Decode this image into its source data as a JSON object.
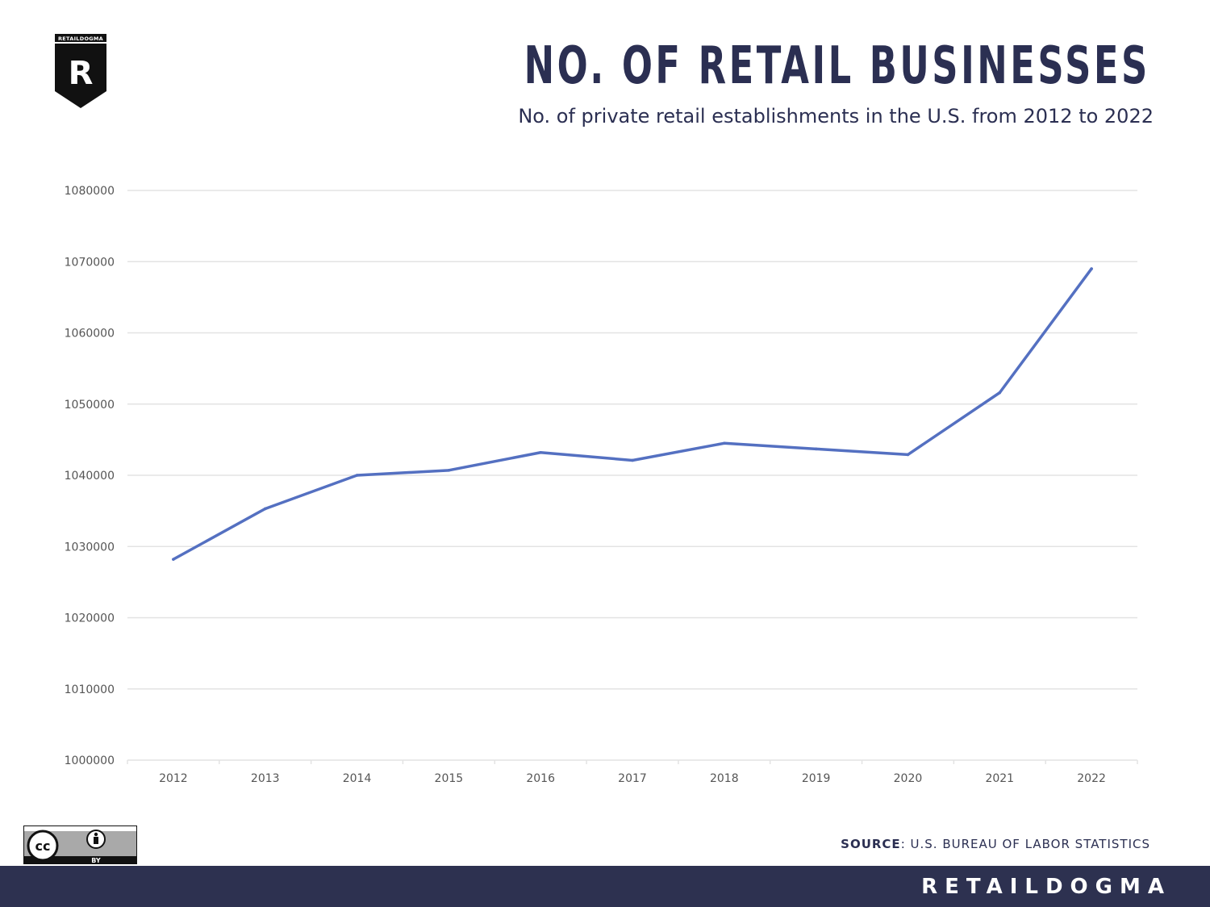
{
  "logo": {
    "brand": "RETAILDOGMA",
    "letter": "R"
  },
  "header": {
    "title": "NO. OF RETAIL BUSINESSES",
    "subtitle": "No. of private retail establishments in the U.S. from 2012 to 2022"
  },
  "chart_data": {
    "type": "line",
    "title": "NO. OF RETAIL BUSINESSES",
    "subtitle": "No. of private retail establishments in the U.S. from 2012 to 2022",
    "xlabel": "",
    "ylabel": "",
    "categories": [
      "2012",
      "2013",
      "2014",
      "2015",
      "2016",
      "2017",
      "2018",
      "2019",
      "2020",
      "2021",
      "2022"
    ],
    "series": [
      {
        "name": "Retail establishments",
        "values": [
          1028200,
          1035300,
          1040000,
          1040700,
          1043200,
          1042100,
          1044500,
          1043700,
          1042900,
          1051600,
          1069000
        ]
      }
    ],
    "ylim": [
      1000000,
      1080000
    ],
    "yticks": [
      1000000,
      1010000,
      1020000,
      1030000,
      1040000,
      1050000,
      1060000,
      1070000,
      1080000
    ],
    "grid": true,
    "legend": "none"
  },
  "colors": {
    "line": "#5470c1",
    "navy": "#2b2f52",
    "grid": "#e3e3e3"
  },
  "license": {
    "cc": "cc",
    "by": "BY"
  },
  "source": {
    "label": "SOURCE",
    "text": ": U.S. BUREAU OF LABOR STATISTICS"
  },
  "footer": {
    "brand": "RETAILDOGMA"
  }
}
